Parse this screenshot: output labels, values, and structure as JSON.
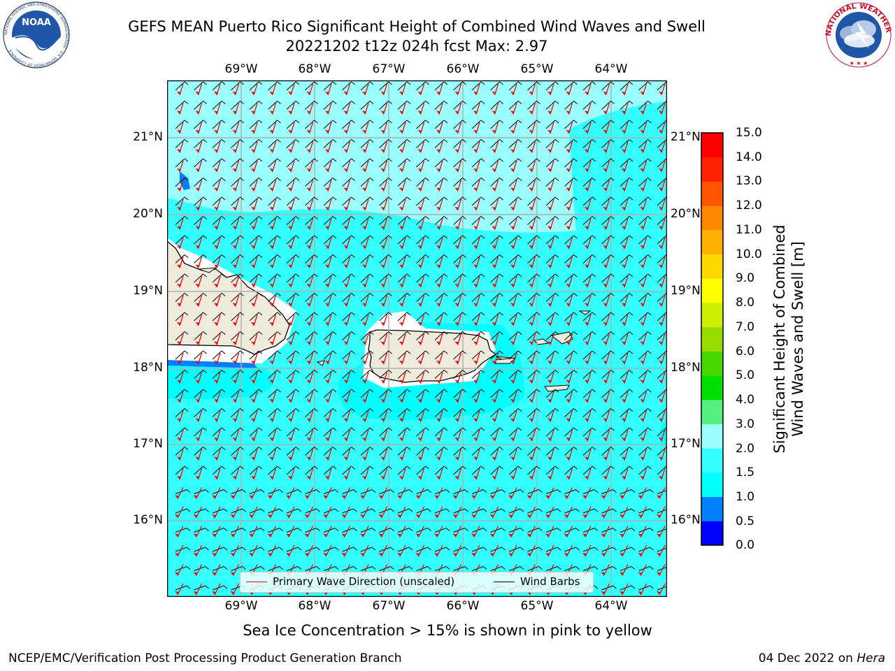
{
  "title": {
    "line1": "GEFS MEAN Puerto Rico Significant Height of Combined Wind Waves and Swell",
    "line2": "20221202 t12z 024h fcst   Max: 2.97"
  },
  "logos": {
    "left": "NOAA",
    "left_ring_text": "NATIONAL OCEANIC AND ATMOSPHERIC ADMINISTRATION · U.S. DEPARTMENT OF COMMERCE",
    "right_ring_text": "NATIONAL WEATHER SERVICE"
  },
  "map": {
    "lon_labels": [
      "69°W",
      "68°W",
      "67°W",
      "66°W",
      "65°W",
      "64°W"
    ],
    "lat_labels": [
      "21°N",
      "20°N",
      "19°N",
      "18°N",
      "17°N",
      "16°N"
    ],
    "colors": {
      "ocean_1_0_to_1_5": "#00ffff",
      "ocean_1_5_to_2_0": "#33ffff",
      "ocean_2_0_to_3_0": "#99ffff",
      "low_0_5_to_1_0": "#0080ff",
      "land": "#eeeadc",
      "grid": "#b0b0b0",
      "wave_arrow": "#ff0000",
      "wind_barb": "#000000"
    }
  },
  "legend": {
    "wave_label": "Primary Wave Direction (unscaled)",
    "wind_label": "Wind Barbs",
    "wave_color": "#ff0000",
    "wind_color": "#000000"
  },
  "colorbar": {
    "title_line1": "Significant Height of Combined",
    "title_line2": "Wind Waves and Swell [m]",
    "ticks": [
      "15.0",
      "14.0",
      "13.0",
      "12.0",
      "11.0",
      "10.0",
      "9.0",
      "8.0",
      "7.0",
      "6.0",
      "5.0",
      "4.0",
      "3.0",
      "2.0",
      "1.5",
      "1.0",
      "0.5",
      "0.0"
    ],
    "bands_bottom_to_top": [
      "#0000ff",
      "#0080ff",
      "#00ffff",
      "#33ffff",
      "#99ffff",
      "#55f080",
      "#00e000",
      "#44d800",
      "#99dd00",
      "#ccee00",
      "#ffff00",
      "#ffd800",
      "#ffb000",
      "#ff8800",
      "#ff5500",
      "#ff2200",
      "#ff0000"
    ]
  },
  "subtitle": "Sea Ice Concentration > 15% is shown in pink to yellow",
  "footer": {
    "left": "NCEP/EMC/Verification Post Processing Product Generation Branch",
    "right_date": "04 Dec 2022 on ",
    "right_machine": "Hera"
  }
}
